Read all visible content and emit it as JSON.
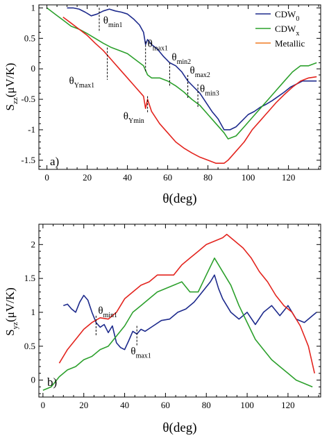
{
  "colors": {
    "cdw0": "#1d2a8c",
    "cdwx": "#2ca02c",
    "metallic": "#e3241e",
    "metallic_legend": "#f07a20"
  },
  "chart_data": [
    {
      "type": "line",
      "panel_label": "a)",
      "xlabel": "θ(deg)",
      "ylabel": {
        "main": "S",
        "sub": "zz",
        "rest": "(μV/K)"
      },
      "xlim": [
        -4,
        136
      ],
      "ylim": [
        -1.65,
        1.05
      ],
      "xticks": [
        0,
        20,
        40,
        60,
        80,
        100,
        120
      ],
      "yticks": [
        -1.5,
        -1,
        -0.5,
        0,
        0.5,
        1
      ],
      "ytick_labels": [
        "-1.5",
        "-1",
        "-0.5",
        "0",
        "0.5",
        "1"
      ],
      "grid": false,
      "legend": {
        "position": "top-right",
        "entries": [
          {
            "main": "CDW",
            "sub": "0",
            "color_key": "cdw0"
          },
          {
            "main": "CDW",
            "sub": "x",
            "color_key": "cdwx"
          },
          {
            "main": "Metallic",
            "sub": "",
            "color_key": "metallic_legend"
          }
        ]
      },
      "annotations": [
        {
          "main": "θ",
          "sub": "min1",
          "x": 26,
          "line_y": [
            1.0,
            0.6
          ],
          "text_x": 28,
          "text_y": 0.74
        },
        {
          "main": "θ",
          "sub": "max1",
          "x": 49,
          "line_y": [
            0.45,
            -0.05
          ],
          "text_x": 50,
          "text_y": 0.36
        },
        {
          "main": "θ",
          "sub": "min2",
          "x": 61,
          "line_y": [
            0.1,
            -0.3
          ],
          "text_x": 62,
          "text_y": 0.14
        },
        {
          "main": "θ",
          "sub": "max2",
          "x": 70,
          "line_y": [
            -0.1,
            -0.5
          ],
          "text_x": 71,
          "text_y": -0.08
        },
        {
          "main": "θ",
          "sub": "min3",
          "x": 75,
          "line_y": [
            -0.25,
            -0.65
          ],
          "text_x": 76,
          "text_y": -0.38
        },
        {
          "main": "θ",
          "sub": "Ymax1",
          "x": 30,
          "line_y": [
            0.35,
            -0.18
          ],
          "text_x": 11,
          "text_y": -0.25
        },
        {
          "main": "θ",
          "sub": "Ymin",
          "x": 50,
          "line_y": [
            -0.45,
            -0.72
          ],
          "text_x": 38,
          "text_y": -0.83
        }
      ],
      "series": [
        {
          "name": "CDW₀",
          "color_key": "cdw0",
          "x": [
            10,
            13,
            16,
            19,
            22,
            25,
            28,
            31,
            34,
            37,
            40,
            43,
            46,
            48,
            49,
            50,
            52,
            55,
            58,
            61,
            64,
            67,
            70,
            73,
            76,
            79,
            82,
            85,
            88,
            91,
            94,
            97,
            100,
            103,
            106,
            109,
            112,
            115,
            118,
            121,
            124,
            127,
            130,
            134
          ],
          "y": [
            1.0,
            1.0,
            0.98,
            0.93,
            0.87,
            0.9,
            0.95,
            0.98,
            0.95,
            0.93,
            0.9,
            0.82,
            0.72,
            0.6,
            0.4,
            0.48,
            0.4,
            0.32,
            0.2,
            0.1,
            0.05,
            -0.05,
            -0.2,
            -0.3,
            -0.4,
            -0.55,
            -0.7,
            -0.82,
            -1.0,
            -1.0,
            -0.95,
            -0.85,
            -0.75,
            -0.7,
            -0.63,
            -0.58,
            -0.52,
            -0.45,
            -0.38,
            -0.3,
            -0.25,
            -0.2,
            -0.2,
            -0.2
          ]
        },
        {
          "name": "CDWₓ",
          "color_key": "cdwx",
          "x": [
            0,
            4,
            8,
            12,
            16,
            20,
            24,
            28,
            32,
            36,
            40,
            44,
            48,
            50,
            52,
            56,
            60,
            64,
            68,
            72,
            76,
            80,
            84,
            88,
            90,
            94,
            98,
            102,
            106,
            110,
            114,
            118,
            122,
            126,
            130,
            134
          ],
          "y": [
            1.0,
            0.9,
            0.8,
            0.7,
            0.65,
            0.58,
            0.5,
            0.42,
            0.35,
            0.3,
            0.25,
            0.15,
            0.05,
            -0.1,
            -0.15,
            -0.15,
            -0.2,
            -0.28,
            -0.38,
            -0.5,
            -0.6,
            -0.75,
            -0.9,
            -1.05,
            -1.15,
            -1.1,
            -0.95,
            -0.8,
            -0.65,
            -0.5,
            -0.35,
            -0.2,
            -0.05,
            0.05,
            0.05,
            0.1
          ]
        },
        {
          "name": "Metallic",
          "color_key": "metallic",
          "x": [
            8,
            12,
            16,
            20,
            24,
            28,
            32,
            36,
            40,
            44,
            48,
            49,
            50,
            52,
            56,
            60,
            64,
            68,
            72,
            76,
            80,
            84,
            88,
            90,
            94,
            98,
            102,
            106,
            110,
            114,
            118,
            122,
            126,
            130,
            134
          ],
          "y": [
            0.85,
            0.75,
            0.65,
            0.55,
            0.42,
            0.3,
            0.15,
            0.0,
            -0.15,
            -0.3,
            -0.45,
            -0.65,
            -0.5,
            -0.7,
            -0.9,
            -1.05,
            -1.2,
            -1.3,
            -1.38,
            -1.45,
            -1.5,
            -1.55,
            -1.55,
            -1.5,
            -1.35,
            -1.2,
            -1.0,
            -0.85,
            -0.7,
            -0.55,
            -0.42,
            -0.3,
            -0.2,
            -0.15,
            -0.13
          ]
        }
      ]
    },
    {
      "type": "line",
      "panel_label": "b)",
      "xlabel": "θ(deg)",
      "ylabel": {
        "main": "S",
        "sub": "yz",
        "rest": "(μV/K)"
      },
      "xlim": [
        -2,
        136
      ],
      "ylim": [
        -0.25,
        2.3
      ],
      "xticks": [
        0,
        20,
        40,
        60,
        80,
        100,
        120
      ],
      "yticks": [
        0,
        0.5,
        1,
        1.5,
        2
      ],
      "ytick_labels": [
        "0",
        "0.5",
        "1",
        "1.5",
        "2"
      ],
      "grid": false,
      "annotations": [
        {
          "main": "θ",
          "sub": "min1",
          "x": 26,
          "line_y": [
            0.95,
            0.65
          ],
          "text_x": 27,
          "text_y": 0.98
        },
        {
          "main": "θ",
          "sub": "max1",
          "x": 46,
          "line_y": [
            0.8,
            0.5
          ],
          "text_x": 43,
          "text_y": 0.38
        }
      ],
      "series": [
        {
          "name": "CDW₀",
          "color_key": "cdw0",
          "x": [
            10,
            12,
            14,
            16,
            18,
            20,
            22,
            24,
            26,
            28,
            30,
            32,
            34,
            36,
            38,
            40,
            42,
            44,
            46,
            48,
            50,
            54,
            58,
            62,
            66,
            70,
            74,
            78,
            82,
            84,
            86,
            88,
            92,
            96,
            100,
            104,
            108,
            112,
            116,
            120,
            124,
            128,
            132,
            134
          ],
          "y": [
            1.1,
            1.12,
            1.05,
            1.0,
            1.15,
            1.25,
            1.18,
            1.0,
            0.85,
            0.78,
            0.82,
            0.7,
            0.8,
            0.55,
            0.48,
            0.45,
            0.58,
            0.72,
            0.68,
            0.75,
            0.72,
            0.8,
            0.88,
            0.9,
            1.0,
            1.05,
            1.15,
            1.3,
            1.45,
            1.55,
            1.35,
            1.2,
            1.0,
            0.9,
            1.0,
            0.82,
            1.0,
            1.1,
            0.95,
            1.1,
            0.9,
            0.85,
            0.95,
            1.0
          ]
        },
        {
          "name": "CDWₓ",
          "color_key": "cdwx",
          "x": [
            0,
            4,
            8,
            12,
            16,
            20,
            24,
            28,
            32,
            36,
            40,
            44,
            48,
            52,
            56,
            60,
            64,
            68,
            72,
            76,
            80,
            84,
            88,
            92,
            96,
            100,
            104,
            108,
            112,
            116,
            120,
            124,
            128,
            132
          ],
          "y": [
            -0.15,
            -0.1,
            0.05,
            0.15,
            0.2,
            0.3,
            0.35,
            0.45,
            0.5,
            0.65,
            0.8,
            1.0,
            1.1,
            1.2,
            1.3,
            1.35,
            1.4,
            1.45,
            1.3,
            1.3,
            1.55,
            1.8,
            1.6,
            1.4,
            1.1,
            0.85,
            0.6,
            0.45,
            0.3,
            0.2,
            0.1,
            0.0,
            -0.05,
            -0.1
          ]
        },
        {
          "name": "Metallic",
          "color_key": "metallic",
          "x": [
            8,
            12,
            16,
            20,
            24,
            28,
            32,
            36,
            40,
            44,
            48,
            52,
            56,
            60,
            64,
            68,
            72,
            76,
            80,
            84,
            88,
            90,
            94,
            98,
            102,
            106,
            110,
            114,
            118,
            122,
            126,
            130,
            133
          ],
          "y": [
            0.25,
            0.45,
            0.6,
            0.75,
            0.85,
            0.92,
            0.9,
            1.0,
            1.2,
            1.3,
            1.4,
            1.45,
            1.55,
            1.55,
            1.55,
            1.7,
            1.8,
            1.9,
            2.0,
            2.05,
            2.1,
            2.15,
            2.05,
            1.95,
            1.8,
            1.6,
            1.45,
            1.25,
            1.1,
            1.0,
            0.8,
            0.5,
            0.1
          ]
        }
      ]
    }
  ]
}
